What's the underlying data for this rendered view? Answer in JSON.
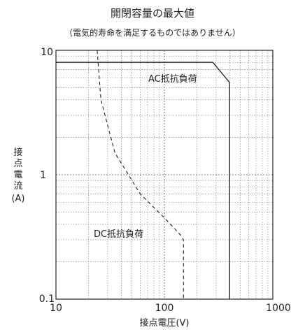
{
  "chart_data": {
    "type": "line",
    "title": "開閉容量の最大値",
    "subtitle": "（電気的寿命を満足するものではありません）",
    "xlabel": "接点電圧(V)",
    "ylabel_chars": [
      "接",
      "点",
      "電",
      "流"
    ],
    "ylabel_unit": "(A)",
    "x_scale": "log",
    "y_scale": "log",
    "xlim": [
      10,
      1000
    ],
    "ylim": [
      0.1,
      10
    ],
    "grid": true,
    "x_tick_labels": [
      "10",
      "100",
      "1000"
    ],
    "y_tick_labels": [
      "0.1",
      "1",
      "10"
    ],
    "series": [
      {
        "name": "AC抵抗負荷",
        "style": "solid",
        "x": [
          10,
          280,
          400,
          400
        ],
        "y": [
          8,
          8,
          5.5,
          0.1
        ]
      },
      {
        "name": "DC抵抗負荷",
        "style": "dashed",
        "x": [
          24,
          26,
          35,
          60,
          100,
          140,
          150,
          150
        ],
        "y": [
          10,
          4.0,
          1.5,
          0.7,
          0.45,
          0.33,
          0.3,
          0.1
        ]
      }
    ]
  }
}
